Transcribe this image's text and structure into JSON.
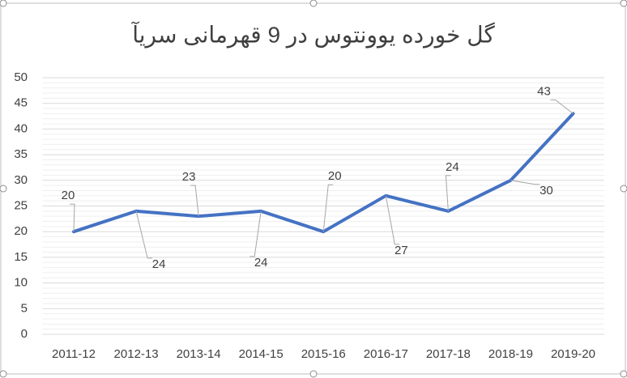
{
  "chart_data": {
    "type": "line",
    "title": "گل خورده یوونتوس در 9 قهرمانی سریآ",
    "categories": [
      "2011-12",
      "2012-13",
      "2013-14",
      "2014-15",
      "2015-16",
      "2016-17",
      "2017-18",
      "2018-19",
      "2019-20"
    ],
    "series": [
      {
        "name": "گل خورده",
        "color": "#4472c4",
        "values": [
          20,
          24,
          23,
          24,
          20,
          27,
          24,
          30,
          43
        ]
      }
    ],
    "ylim": [
      0,
      50
    ],
    "yticks": [
      0,
      5,
      10,
      15,
      20,
      25,
      30,
      35,
      40,
      45,
      50
    ],
    "grid": true,
    "minor_grid": true,
    "data_labels": true
  }
}
